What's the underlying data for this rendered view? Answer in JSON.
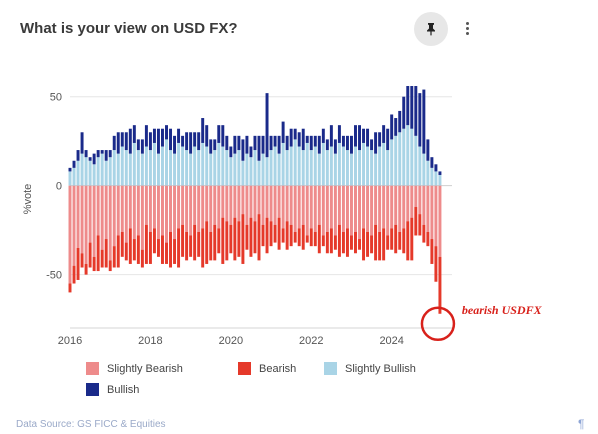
{
  "header": {
    "title": "What is your view on USD FX?",
    "pin_icon": "pin-icon",
    "more_icon": "more-vertical-icon"
  },
  "footer": {
    "source": "Data Source: GS FICC & Equities",
    "corner_icon": "pilcrow-icon",
    "corner_glyph": "¶"
  },
  "annotation": {
    "text": "bearish USDFX",
    "color": "#d8211b"
  },
  "colors": {
    "slightly_bearish": "#ee8b8b",
    "bearish": "#e5392a",
    "slightly_bullish": "#a9d4e6",
    "bullish": "#1a2a8a"
  },
  "chart_data": {
    "type": "bar",
    "stacked": "diverging",
    "title": "What is your view on USD FX?",
    "ylabel": "%vote",
    "xlabel": "",
    "ylim": [
      -80,
      65
    ],
    "xlim": [
      2016,
      2025.5
    ],
    "x_ticks": [
      "2016",
      "2018",
      "2020",
      "2022",
      "2024"
    ],
    "y_ticks": [
      "50",
      "0",
      "-50"
    ],
    "grid": true,
    "legend_position": "bottom",
    "x": [
      2016.0,
      2016.1,
      2016.2,
      2016.3,
      2016.4,
      2016.5,
      2016.6,
      2016.7,
      2016.8,
      2016.9,
      2017.0,
      2017.1,
      2017.2,
      2017.3,
      2017.4,
      2017.5,
      2017.6,
      2017.7,
      2017.8,
      2017.9,
      2018.0,
      2018.1,
      2018.2,
      2018.3,
      2018.4,
      2018.5,
      2018.6,
      2018.7,
      2018.8,
      2018.9,
      2019.0,
      2019.1,
      2019.2,
      2019.3,
      2019.4,
      2019.5,
      2019.6,
      2019.7,
      2019.8,
      2019.9,
      2020.0,
      2020.1,
      2020.2,
      2020.3,
      2020.4,
      2020.5,
      2020.6,
      2020.7,
      2020.8,
      2020.9,
      2021.0,
      2021.1,
      2021.2,
      2021.3,
      2021.4,
      2021.5,
      2021.6,
      2021.7,
      2021.8,
      2021.9,
      2022.0,
      2022.1,
      2022.2,
      2022.3,
      2022.4,
      2022.5,
      2022.6,
      2022.7,
      2022.8,
      2022.9,
      2023.0,
      2023.1,
      2023.2,
      2023.3,
      2023.4,
      2023.5,
      2023.6,
      2023.7,
      2023.8,
      2023.9,
      2024.0,
      2024.1,
      2024.2,
      2024.3,
      2024.4,
      2024.5,
      2024.6,
      2024.7,
      2024.8,
      2024.9,
      2025.0,
      2025.1,
      2025.2
    ],
    "series": [
      {
        "name": "Slightly Bearish",
        "values": [
          -55,
          -45,
          -35,
          -38,
          -44,
          -32,
          -40,
          -28,
          -36,
          -30,
          -42,
          -34,
          -28,
          -26,
          -32,
          -24,
          -30,
          -28,
          -36,
          -22,
          -26,
          -24,
          -30,
          -28,
          -32,
          -26,
          -30,
          -24,
          -22,
          -26,
          -28,
          -22,
          -26,
          -24,
          -20,
          -26,
          -22,
          -24,
          -18,
          -20,
          -22,
          -18,
          -20,
          -16,
          -22,
          -18,
          -20,
          -16,
          -22,
          -18,
          -20,
          -22,
          -18,
          -24,
          -20,
          -22,
          -26,
          -24,
          -22,
          -28,
          -24,
          -26,
          -22,
          -28,
          -26,
          -24,
          -28,
          -22,
          -26,
          -24,
          -28,
          -26,
          -30,
          -24,
          -26,
          -28,
          -22,
          -26,
          -24,
          -28,
          -24,
          -22,
          -26,
          -24,
          -20,
          -18,
          -12,
          -16,
          -22,
          -26,
          -30,
          -34,
          -40
        ]
      },
      {
        "name": "Bearish",
        "values": [
          -5,
          -10,
          -18,
          -8,
          -6,
          -14,
          -8,
          -20,
          -10,
          -16,
          -6,
          -12,
          -18,
          -14,
          -10,
          -20,
          -12,
          -16,
          -10,
          -22,
          -18,
          -14,
          -10,
          -16,
          -12,
          -20,
          -14,
          -22,
          -18,
          -16,
          -12,
          -20,
          -14,
          -22,
          -24,
          -16,
          -20,
          -14,
          -26,
          -22,
          -16,
          -24,
          -20,
          -28,
          -14,
          -22,
          -18,
          -26,
          -12,
          -20,
          -14,
          -10,
          -18,
          -8,
          -16,
          -12,
          -6,
          -10,
          -14,
          -4,
          -10,
          -8,
          -16,
          -6,
          -12,
          -14,
          -8,
          -18,
          -12,
          -16,
          -8,
          -12,
          -6,
          -18,
          -14,
          -10,
          -20,
          -16,
          -18,
          -8,
          -12,
          -16,
          -10,
          -14,
          -22,
          -24,
          -16,
          -12,
          -10,
          -8,
          -14,
          -20,
          -32
        ]
      },
      {
        "name": "Slightly Bullish",
        "values": [
          8,
          10,
          14,
          18,
          16,
          14,
          12,
          16,
          18,
          14,
          16,
          20,
          18,
          22,
          20,
          18,
          24,
          20,
          18,
          22,
          20,
          24,
          18,
          22,
          26,
          20,
          18,
          24,
          22,
          20,
          18,
          22,
          20,
          24,
          22,
          18,
          20,
          24,
          22,
          20,
          16,
          18,
          20,
          14,
          18,
          16,
          20,
          14,
          18,
          16,
          20,
          22,
          18,
          24,
          20,
          22,
          26,
          22,
          20,
          24,
          20,
          22,
          18,
          24,
          20,
          22,
          18,
          24,
          22,
          20,
          18,
          22,
          20,
          24,
          22,
          20,
          18,
          22,
          24,
          20,
          26,
          28,
          30,
          32,
          34,
          32,
          28,
          22,
          18,
          14,
          10,
          8,
          6
        ]
      },
      {
        "name": "Bullish",
        "values": [
          2,
          4,
          6,
          12,
          4,
          2,
          6,
          4,
          2,
          6,
          4,
          8,
          12,
          8,
          10,
          14,
          10,
          6,
          8,
          12,
          10,
          8,
          14,
          10,
          8,
          12,
          10,
          8,
          6,
          10,
          12,
          8,
          10,
          14,
          12,
          8,
          6,
          10,
          12,
          8,
          6,
          10,
          8,
          12,
          10,
          6,
          8,
          14,
          10,
          36,
          8,
          6,
          10,
          12,
          8,
          10,
          6,
          8,
          12,
          4,
          8,
          6,
          10,
          8,
          6,
          12,
          8,
          10,
          6,
          8,
          10,
          12,
          14,
          8,
          10,
          6,
          12,
          8,
          10,
          12,
          14,
          10,
          12,
          18,
          22,
          24,
          28,
          30,
          36,
          12,
          6,
          4,
          2
        ]
      }
    ]
  },
  "legend": {
    "items": [
      {
        "label": "Slightly Bearish",
        "color": "#ee8b8b"
      },
      {
        "label": "Bearish",
        "color": "#e5392a"
      },
      {
        "label": "Slightly Bullish",
        "color": "#a9d4e6"
      },
      {
        "label": "Bullish",
        "color": "#1a2a8a"
      }
    ]
  }
}
